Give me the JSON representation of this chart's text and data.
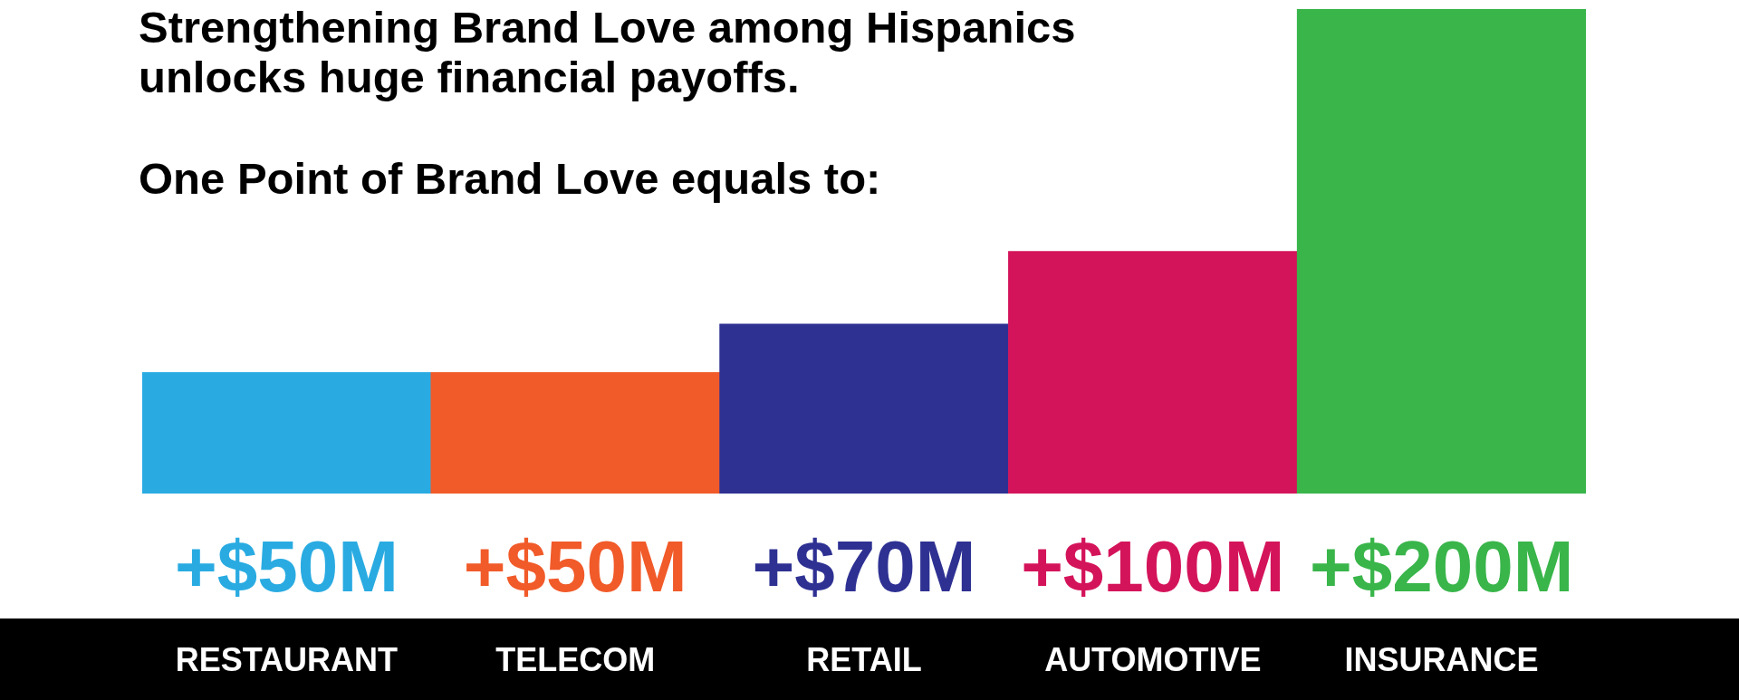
{
  "chart_data": {
    "type": "bar",
    "title": "Strengthening Brand Love among Hispanics unlocks huge financial payoffs.",
    "subtitle": "One Point of Brand Love equals to:",
    "categories": [
      "RESTAURANT",
      "TELECOM",
      "RETAIL",
      "AUTOMOTIVE",
      "INSURANCE"
    ],
    "values": [
      50,
      50,
      70,
      100,
      200
    ],
    "colors": [
      "#29abe2",
      "#f15a29",
      "#2e3192",
      "#d4145a",
      "#39b54a"
    ],
    "value_labels": [
      "+$50M",
      "+$50M",
      "+$70M",
      "+$100M",
      "+$200M"
    ]
  }
}
